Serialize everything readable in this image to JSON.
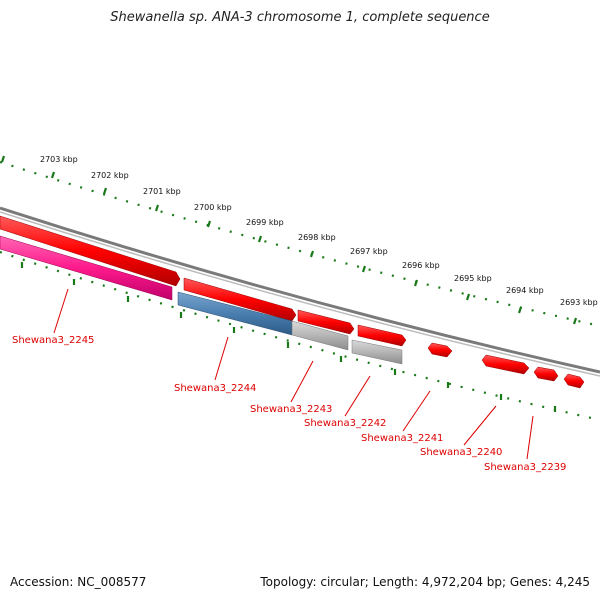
{
  "title": "Shewanella sp. ANA-3 chromosome 1, complete sequence",
  "footer": {
    "accession": "Accession: NC_008577",
    "topology": "Topology: circular; Length: 4,972,204 bp; Genes: 4,245"
  },
  "ruler": {
    "ticks": [
      "2703 kbp",
      "2702 kbp",
      "2701 kbp",
      "2700 kbp",
      "2699 kbp",
      "2698 kbp",
      "2697 kbp",
      "2696 kbp",
      "2695 kbp",
      "2694 kbp",
      "2693 kbp"
    ]
  },
  "colors": {
    "forward_gene": "#ff0000",
    "reverse_pink": "#ff1a8c",
    "reverse_blue": "#4a7fb0",
    "reverse_gray": "#b5b5b5",
    "backbone": "#7a7a7a",
    "tick": "#1a7a1a",
    "label": "#dd0000"
  },
  "genes": {
    "labels": [
      "Shewana3_2245",
      "Shewana3_2244",
      "Shewana3_2243",
      "Shewana3_2242",
      "Shewana3_2241",
      "Shewana3_2240",
      "Shewana3_2239"
    ]
  }
}
